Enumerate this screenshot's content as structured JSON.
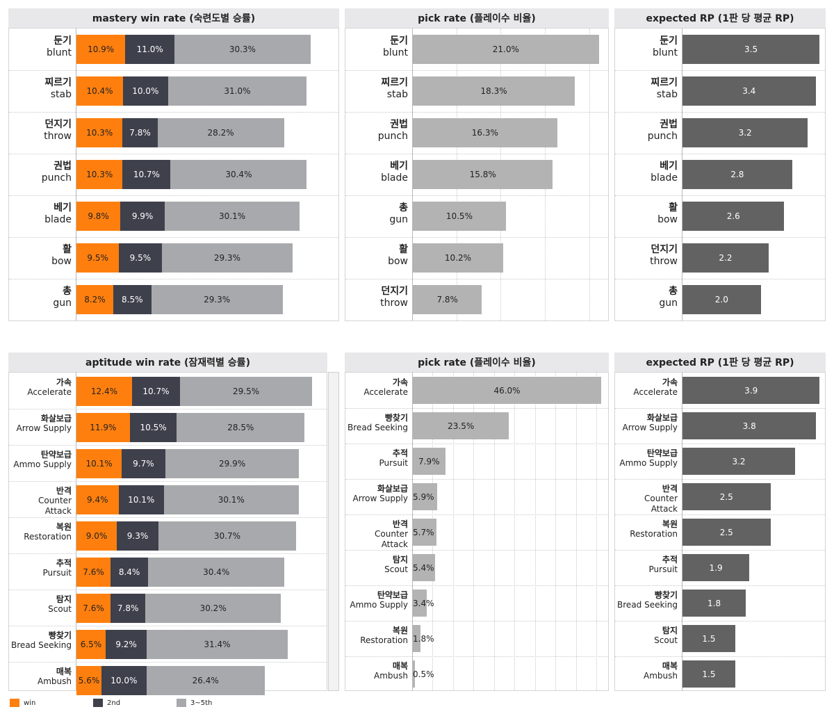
{
  "colors": {
    "win": "#ff7f0e",
    "second": "#3e404c",
    "rest": "#a7a9ac",
    "pick": "#b3b3b3",
    "rp": "#626262"
  },
  "legend": [
    {
      "key": "win",
      "label": "win",
      "color": "#ff7f0e"
    },
    {
      "key": "second",
      "label": "2nd",
      "color": "#3e404c"
    },
    {
      "key": "rest",
      "label": "3~5th",
      "color": "#a7a9ac"
    }
  ],
  "chart_data": [
    {
      "type": "bar",
      "stacked": true,
      "orientation": "horizontal",
      "title": "mastery win rate (숙련도별 승률)",
      "categories": [
        {
          "ko": "둔기",
          "en": "blunt"
        },
        {
          "ko": "찌르기",
          "en": "stab"
        },
        {
          "ko": "던지기",
          "en": "throw"
        },
        {
          "ko": "권법",
          "en": "punch"
        },
        {
          "ko": "베기",
          "en": "blade"
        },
        {
          "ko": "활",
          "en": "bow"
        },
        {
          "ko": "총",
          "en": "gun"
        }
      ],
      "series": [
        {
          "name": "win",
          "values": [
            10.9,
            10.4,
            10.3,
            10.3,
            9.8,
            9.5,
            8.2
          ],
          "labels": [
            "10.9%",
            "10.4%",
            "10.3%",
            "10.3%",
            "9.8%",
            "9.5%",
            "8.2%"
          ]
        },
        {
          "name": "2nd",
          "values": [
            11.0,
            10.0,
            7.8,
            10.7,
            9.9,
            9.5,
            8.5
          ],
          "labels": [
            "11.0%",
            "10.0%",
            "7.8%",
            "10.7%",
            "9.9%",
            "9.5%",
            "8.5%"
          ]
        },
        {
          "name": "3~5th",
          "values": [
            30.3,
            31.0,
            28.2,
            30.4,
            30.1,
            29.3,
            29.3
          ],
          "labels": [
            "30.3%",
            "31.0%",
            "28.2%",
            "30.4%",
            "30.1%",
            "29.3%",
            "29.3%"
          ]
        }
      ],
      "xlim": [
        0,
        58
      ]
    },
    {
      "type": "bar",
      "orientation": "horizontal",
      "title": "pick rate (플레이수 비율)",
      "categories": [
        {
          "ko": "둔기",
          "en": "blunt"
        },
        {
          "ko": "찌르기",
          "en": "stab"
        },
        {
          "ko": "권법",
          "en": "punch"
        },
        {
          "ko": "베기",
          "en": "blade"
        },
        {
          "ko": "총",
          "en": "gun"
        },
        {
          "ko": "활",
          "en": "bow"
        },
        {
          "ko": "던지기",
          "en": "throw"
        }
      ],
      "values": [
        21.0,
        18.3,
        16.3,
        15.8,
        10.5,
        10.2,
        7.8
      ],
      "labels": [
        "21.0%",
        "18.3%",
        "16.3%",
        "15.8%",
        "10.5%",
        "10.2%",
        "7.8%"
      ],
      "xlim": [
        0,
        21.5
      ],
      "grid_values": [
        5,
        10,
        15,
        20
      ]
    },
    {
      "type": "bar",
      "orientation": "horizontal",
      "title": "expected RP (1판 당 평균 RP)",
      "categories": [
        {
          "ko": "둔기",
          "en": "blunt"
        },
        {
          "ko": "찌르기",
          "en": "stab"
        },
        {
          "ko": "권법",
          "en": "punch"
        },
        {
          "ko": "베기",
          "en": "blade"
        },
        {
          "ko": "활",
          "en": "bow"
        },
        {
          "ko": "던지기",
          "en": "throw"
        },
        {
          "ko": "총",
          "en": "gun"
        }
      ],
      "values": [
        3.5,
        3.4,
        3.2,
        2.8,
        2.6,
        2.2,
        2.0
      ],
      "labels": [
        "3.5",
        "3.4",
        "3.2",
        "2.8",
        "2.6",
        "2.2",
        "2.0"
      ],
      "xlim": [
        0,
        3.55
      ]
    },
    {
      "type": "bar",
      "stacked": true,
      "orientation": "horizontal",
      "title": "aptitude win rate (잠재력별 승률)",
      "categories": [
        {
          "ko": "가속",
          "en": "Accelerate"
        },
        {
          "ko": "화살보급",
          "en": "Arrow Supply"
        },
        {
          "ko": "탄약보급",
          "en": "Ammo Supply"
        },
        {
          "ko": "반격",
          "en": "Counter Attack"
        },
        {
          "ko": "복원",
          "en": "Restoration"
        },
        {
          "ko": "추적",
          "en": "Pursuit"
        },
        {
          "ko": "탐지",
          "en": "Scout"
        },
        {
          "ko": "빵찾기",
          "en": "Bread Seeking"
        },
        {
          "ko": "매복",
          "en": "Ambush"
        }
      ],
      "series": [
        {
          "name": "win",
          "values": [
            12.4,
            11.9,
            10.1,
            9.4,
            9.0,
            7.6,
            7.6,
            6.5,
            5.6
          ],
          "labels": [
            "12.4%",
            "11.9%",
            "10.1%",
            "9.4%",
            "9.0%",
            "7.6%",
            "7.6%",
            "6.5%",
            "5.6%"
          ]
        },
        {
          "name": "2nd",
          "values": [
            10.7,
            10.5,
            9.7,
            10.1,
            9.3,
            8.4,
            7.8,
            9.2,
            10.0
          ],
          "labels": [
            "10.7%",
            "10.5%",
            "9.7%",
            "10.1%",
            "9.3%",
            "8.4%",
            "7.8%",
            "9.2%",
            "10.0%"
          ]
        },
        {
          "name": "3~5th",
          "values": [
            29.5,
            28.5,
            29.9,
            30.1,
            30.7,
            30.4,
            30.2,
            31.4,
            26.4
          ],
          "labels": [
            "29.5%",
            "28.5%",
            "29.9%",
            "30.1%",
            "30.7%",
            "30.4%",
            "30.2%",
            "31.4%",
            "26.4%"
          ]
        }
      ],
      "xlim": [
        0,
        58
      ]
    },
    {
      "type": "bar",
      "orientation": "horizontal",
      "title": "pick rate (플레이수 비율)",
      "categories": [
        {
          "ko": "가속",
          "en": "Accelerate"
        },
        {
          "ko": "빵찾기",
          "en": "Bread Seeking"
        },
        {
          "ko": "추적",
          "en": "Pursuit"
        },
        {
          "ko": "화살보급",
          "en": "Arrow Supply"
        },
        {
          "ko": "반격",
          "en": "Counter Attack"
        },
        {
          "ko": "탐지",
          "en": "Scout"
        },
        {
          "ko": "탄약보급",
          "en": "Ammo Supply"
        },
        {
          "ko": "복원",
          "en": "Restoration"
        },
        {
          "ko": "매복",
          "en": "Ambush"
        }
      ],
      "values": [
        46.0,
        23.5,
        7.9,
        5.9,
        5.7,
        5.4,
        3.4,
        1.8,
        0.5
      ],
      "labels": [
        "46.0%",
        "23.5%",
        "7.9%",
        "5.9%",
        "5.7%",
        "5.4%",
        "3.4%",
        "1.8%",
        "0.5%"
      ],
      "xlim": [
        0,
        46.5
      ],
      "grid_values": [
        5,
        10,
        15,
        20,
        25,
        30,
        35,
        40,
        45
      ]
    },
    {
      "type": "bar",
      "orientation": "horizontal",
      "title": "expected RP (1판 당 평균 RP)",
      "categories": [
        {
          "ko": "가속",
          "en": "Accelerate"
        },
        {
          "ko": "화살보급",
          "en": "Arrow Supply"
        },
        {
          "ko": "탄약보급",
          "en": "Ammo Supply"
        },
        {
          "ko": "반격",
          "en": "Counter Attack"
        },
        {
          "ko": "복원",
          "en": "Restoration"
        },
        {
          "ko": "추적",
          "en": "Pursuit"
        },
        {
          "ko": "빵찾기",
          "en": "Bread Seeking"
        },
        {
          "ko": "탐지",
          "en": "Scout"
        },
        {
          "ko": "매복",
          "en": "Ambush"
        }
      ],
      "values": [
        3.9,
        3.8,
        3.2,
        2.5,
        2.5,
        1.9,
        1.8,
        1.5,
        1.5
      ],
      "labels": [
        "3.9",
        "3.8",
        "3.2",
        "2.5",
        "2.5",
        "1.9",
        "1.8",
        "1.5",
        "1.5"
      ],
      "xlim": [
        0,
        3.95
      ]
    }
  ]
}
